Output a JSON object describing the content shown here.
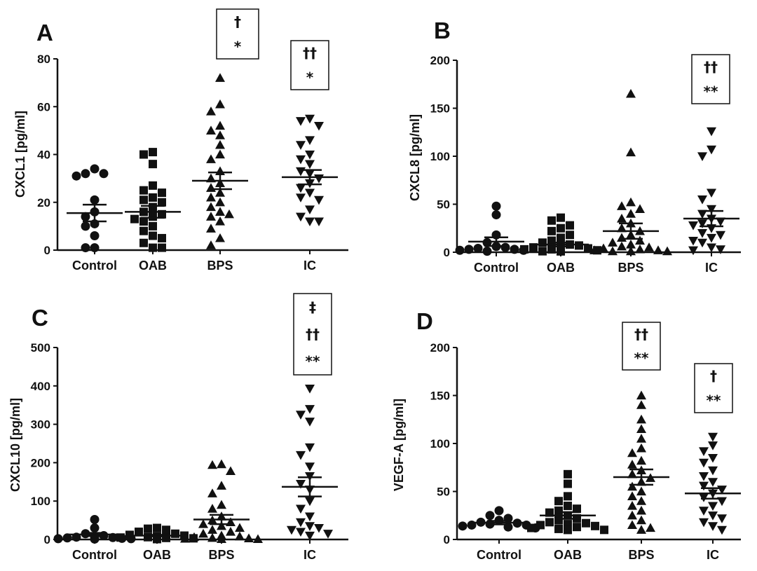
{
  "chart_data": [
    {
      "panel": "A",
      "type": "scatter",
      "ylabel": "CXCL1 [pg/ml]",
      "ylim": [
        0,
        80
      ],
      "yticks": [
        0,
        20,
        40,
        60,
        80
      ],
      "categories": [
        "Control",
        "OAB",
        "BPS",
        "IC"
      ],
      "markers": [
        "circle",
        "square",
        "triangle-up",
        "triangle-down"
      ],
      "groups": [
        {
          "name": "Control",
          "values": [
            34,
            32,
            32,
            31,
            21,
            16,
            14,
            11,
            10,
            6,
            1,
            1
          ],
          "mean": 15.5,
          "sem": 3.5,
          "annotation": []
        },
        {
          "name": "OAB",
          "values": [
            41,
            40,
            36,
            27,
            25,
            24,
            22,
            21,
            20,
            18,
            16,
            15,
            14,
            13,
            12,
            10,
            8,
            6,
            5,
            3,
            1,
            1
          ],
          "mean": 16,
          "sem": 2.5,
          "annotation": []
        },
        {
          "name": "BPS",
          "values": [
            72,
            61,
            58,
            52,
            50,
            48,
            44,
            40,
            38,
            33,
            30,
            28,
            26,
            24,
            22,
            20,
            18,
            16,
            15,
            14,
            12,
            9,
            5,
            2
          ],
          "mean": 29,
          "sem": 3.5,
          "annotation": [
            "†",
            "*"
          ]
        },
        {
          "name": "IC",
          "values": [
            55,
            54,
            52,
            46,
            44,
            40,
            38,
            36,
            33,
            32,
            30,
            28,
            26,
            24,
            22,
            21,
            17,
            14,
            12,
            12
          ],
          "mean": 30.5,
          "sem": 3,
          "annotation": [
            "††",
            "*"
          ]
        }
      ]
    },
    {
      "panel": "B",
      "type": "scatter",
      "ylabel": "CXCL8 [pg/ml]",
      "ylim": [
        0,
        200
      ],
      "yticks": [
        0,
        50,
        100,
        150,
        200
      ],
      "categories": [
        "Control",
        "OAB",
        "BPS",
        "IC"
      ],
      "markers": [
        "circle",
        "square",
        "triangle-up",
        "triangle-down"
      ],
      "groups": [
        {
          "name": "Control",
          "values": [
            48,
            39,
            18,
            10,
            6,
            5,
            4,
            3,
            3,
            2,
            2,
            1
          ],
          "mean": 11,
          "sem": 4.5,
          "annotation": []
        },
        {
          "name": "OAB",
          "values": [
            36,
            33,
            28,
            25,
            22,
            18,
            15,
            12,
            10,
            8,
            7,
            6,
            5,
            4,
            3,
            3,
            2,
            2,
            1,
            1,
            1,
            1
          ],
          "mean": 8,
          "sem": 2,
          "annotation": []
        },
        {
          "name": "BPS",
          "values": [
            165,
            104,
            52,
            48,
            45,
            40,
            35,
            30,
            25,
            22,
            18,
            15,
            12,
            10,
            8,
            6,
            5,
            4,
            3,
            2,
            2,
            1,
            1,
            1
          ],
          "mean": 22,
          "sem": 8,
          "annotation": []
        },
        {
          "name": "IC",
          "values": [
            126,
            107,
            100,
            62,
            55,
            45,
            40,
            35,
            32,
            30,
            28,
            25,
            20,
            18,
            15,
            12,
            10,
            5,
            3,
            2
          ],
          "mean": 35,
          "sem": 8,
          "annotation": [
            "††",
            "**"
          ]
        }
      ]
    },
    {
      "panel": "C",
      "type": "scatter",
      "ylabel": "CXCL10 [pg/ml]",
      "ylim": [
        0,
        500
      ],
      "yticks": [
        0,
        100,
        200,
        300,
        400,
        500
      ],
      "categories": [
        "Control",
        "OAB",
        "BPS",
        "IC"
      ],
      "markers": [
        "circle",
        "square",
        "triangle-up",
        "triangle-down"
      ],
      "groups": [
        {
          "name": "Control",
          "values": [
            52,
            30,
            15,
            10,
            8,
            6,
            5,
            4,
            3,
            2,
            2,
            1
          ],
          "mean": 13,
          "sem": 4,
          "annotation": []
        },
        {
          "name": "OAB",
          "values": [
            30,
            28,
            25,
            20,
            15,
            12,
            10,
            8,
            6,
            5,
            4,
            3,
            3,
            2,
            2,
            1,
            1,
            1,
            1,
            1,
            1,
            1
          ],
          "mean": 10,
          "sem": 2,
          "annotation": []
        },
        {
          "name": "BPS",
          "values": [
            196,
            194,
            178,
            140,
            120,
            90,
            80,
            60,
            50,
            45,
            40,
            35,
            30,
            25,
            20,
            15,
            10,
            8,
            6,
            4,
            3,
            2,
            1,
            1
          ],
          "mean": 52,
          "sem": 12,
          "annotation": []
        },
        {
          "name": "IC",
          "values": [
            393,
            340,
            325,
            307,
            240,
            220,
            190,
            165,
            145,
            130,
            100,
            80,
            60,
            45,
            35,
            30,
            25,
            20,
            15,
            10
          ],
          "mean": 137,
          "sem": 25,
          "annotation": [
            "‡",
            "††",
            "**"
          ]
        }
      ]
    },
    {
      "panel": "D",
      "type": "scatter",
      "ylabel": "VEGF-A [pg/ml]",
      "ylim": [
        0,
        200
      ],
      "yticks": [
        0,
        50,
        100,
        150,
        200
      ],
      "categories": [
        "Control",
        "OAB",
        "BPS",
        "IC"
      ],
      "markers": [
        "circle",
        "square",
        "triangle-up",
        "triangle-down"
      ],
      "groups": [
        {
          "name": "Control",
          "values": [
            30,
            25,
            22,
            20,
            18,
            17,
            16,
            15,
            15,
            14,
            13,
            12
          ],
          "mean": 17.5,
          "sem": 1.8,
          "annotation": []
        },
        {
          "name": "OAB",
          "values": [
            68,
            58,
            45,
            40,
            35,
            32,
            30,
            28,
            25,
            22,
            20,
            18,
            17,
            16,
            15,
            14,
            13,
            12,
            11,
            10,
            10,
            10
          ],
          "mean": 25,
          "sem": 3.5,
          "annotation": []
        },
        {
          "name": "BPS",
          "values": [
            150,
            140,
            125,
            115,
            105,
            95,
            90,
            82,
            78,
            72,
            68,
            64,
            60,
            55,
            50,
            45,
            40,
            35,
            30,
            25,
            20,
            15,
            12,
            10
          ],
          "mean": 65,
          "sem": 8,
          "annotation": [
            "††",
            "**"
          ]
        },
        {
          "name": "IC",
          "values": [
            107,
            98,
            92,
            85,
            80,
            72,
            66,
            60,
            56,
            52,
            48,
            44,
            40,
            35,
            30,
            25,
            22,
            18,
            14,
            10
          ],
          "mean": 48,
          "sem": 5.5,
          "annotation": [
            "†",
            "**"
          ]
        }
      ]
    }
  ]
}
